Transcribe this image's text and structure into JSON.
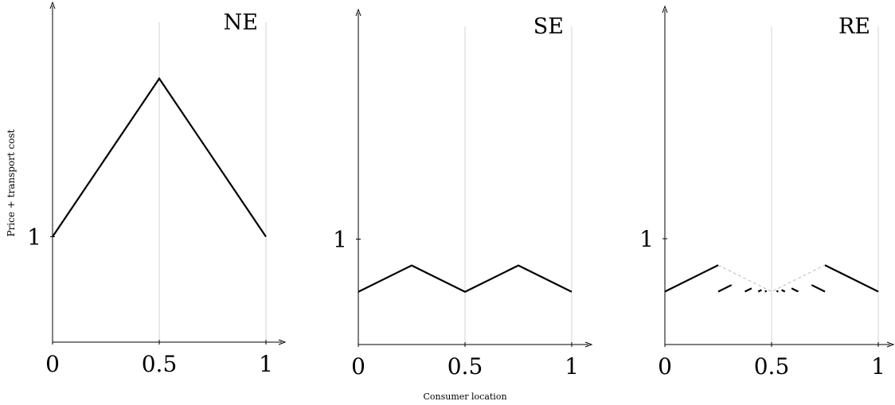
{
  "figure": {
    "ylabel": "Price + transport cost",
    "xlabel": "Consumer location"
  },
  "chart_data": [
    {
      "type": "line",
      "title": "NE",
      "xlim": [
        0,
        1
      ],
      "xticks": [
        {
          "value": 0,
          "label": "0"
        },
        {
          "value": 0.5,
          "label": "0.5"
        },
        {
          "value": 1,
          "label": "1"
        }
      ],
      "yticks": [
        {
          "value": 1,
          "label": "1"
        }
      ],
      "ylim": [
        0,
        2.5
      ],
      "vlines": [
        0.5,
        1
      ],
      "segments": [
        {
          "points": [
            [
              0,
              1
            ],
            [
              0.5,
              2.5
            ],
            [
              1,
              1
            ]
          ],
          "style": "solid"
        }
      ]
    },
    {
      "type": "line",
      "title": "SE",
      "xlim": [
        0,
        1
      ],
      "xticks": [
        {
          "value": 0,
          "label": "0"
        },
        {
          "value": 0.5,
          "label": "0.5"
        },
        {
          "value": 1,
          "label": "1"
        }
      ],
      "yticks": [
        {
          "value": 1,
          "label": "1"
        }
      ],
      "ylim": [
        0,
        2.5
      ],
      "vlines": [
        0.5,
        1
      ],
      "segments": [
        {
          "points": [
            [
              0,
              0.5
            ],
            [
              0.25,
              0.75
            ],
            [
              0.5,
              0.5
            ],
            [
              0.75,
              0.75
            ],
            [
              1,
              0.5
            ]
          ],
          "style": "solid"
        }
      ]
    },
    {
      "type": "line",
      "title": "RE",
      "xlim": [
        0,
        1
      ],
      "xticks": [
        {
          "value": 0,
          "label": "0"
        },
        {
          "value": 0.5,
          "label": "0.5"
        },
        {
          "value": 1,
          "label": "1"
        }
      ],
      "yticks": [
        {
          "value": 1,
          "label": "1"
        }
      ],
      "ylim": [
        0,
        2.5
      ],
      "vlines": [
        0.5,
        1
      ],
      "segments": [
        {
          "points": [
            [
              0,
              0.5
            ],
            [
              0.25,
              0.75
            ]
          ],
          "style": "solid"
        },
        {
          "points": [
            [
              0.75,
              0.75
            ],
            [
              1,
              0.5
            ]
          ],
          "style": "solid"
        },
        {
          "points": [
            [
              0.25,
              0.75
            ],
            [
              0.5,
              0.5
            ],
            [
              0.75,
              0.75
            ]
          ],
          "style": "dashed"
        },
        {
          "points": [
            [
              0.25,
              0.5
            ],
            [
              0.3125,
              0.5625
            ]
          ],
          "style": "solid"
        },
        {
          "points": [
            [
              0.375,
              0.5
            ],
            [
              0.40625,
              0.53125
            ]
          ],
          "style": "solid"
        },
        {
          "points": [
            [
              0.4375,
              0.5
            ],
            [
              0.453125,
              0.515625
            ]
          ],
          "style": "solid"
        },
        {
          "points": [
            [
              0.46875,
              0.5
            ],
            [
              0.4765625,
              0.5078125
            ]
          ],
          "style": "solid"
        },
        {
          "points": [
            [
              0.5234375,
              0.5078125
            ],
            [
              0.53125,
              0.5
            ]
          ],
          "style": "solid"
        },
        {
          "points": [
            [
              0.546875,
              0.515625
            ],
            [
              0.5625,
              0.5
            ]
          ],
          "style": "solid"
        },
        {
          "points": [
            [
              0.59375,
              0.53125
            ],
            [
              0.625,
              0.5
            ]
          ],
          "style": "solid"
        },
        {
          "points": [
            [
              0.6875,
              0.5625
            ],
            [
              0.75,
              0.5
            ]
          ],
          "style": "solid"
        }
      ]
    }
  ]
}
